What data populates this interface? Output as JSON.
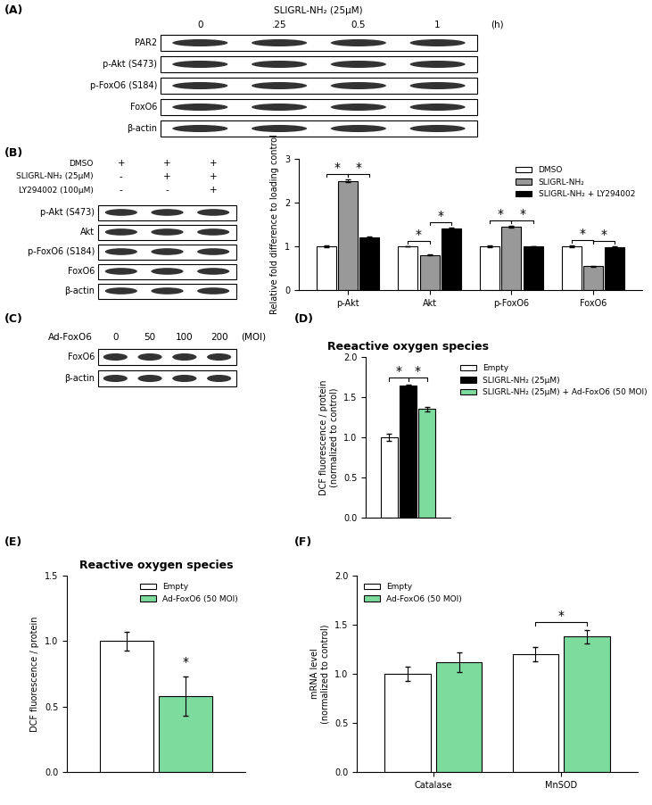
{
  "blots": [
    {
      "panel_label": "(A)",
      "header": "SLIGRL-NH₂ (25μM)",
      "columns": [
        "0",
        ".25",
        "0.5",
        "1"
      ],
      "unit": "(h)",
      "rows": [
        "PAR2",
        "p-Akt (S473)",
        "p-FoxO6 (S184)",
        "FoxO6",
        "β-actin"
      ]
    },
    {
      "panel_label": "(B)",
      "conditions": [
        {
          "label": "DMSO",
          "signs": [
            "+",
            "+",
            "+"
          ]
        },
        {
          "label": "SLIGRL-NH₂ (25μM)",
          "signs": [
            "-",
            "+",
            "+"
          ]
        },
        {
          "label": "LY294002 (100μM)",
          "signs": [
            "-",
            "-",
            "+"
          ]
        }
      ],
      "rows": [
        "p-Akt (S473)",
        "Akt",
        "p-FoxO6 (S184)",
        "FoxO6",
        "β-actin"
      ]
    },
    {
      "panel_label": "(C)",
      "header": "Ad-FoxO6",
      "columns": [
        "0",
        "50",
        "100",
        "200"
      ],
      "unit": "(MOI)",
      "rows": [
        "FoxO6",
        "β-actin"
      ]
    }
  ],
  "chart_data": [
    {
      "type": "bar",
      "y_label": "Relative fold difference to loading control",
      "categories": [
        "p-Akt",
        "Akt",
        "p-FoxO6",
        "FoxO6"
      ],
      "series": [
        {
          "name": "DMSO",
          "color": "#ffffff",
          "values": [
            1.0,
            1.0,
            1.0,
            1.0
          ],
          "errors": [
            0.03,
            0.01,
            0.02,
            0.02
          ]
        },
        {
          "name": "SLIGRL-NH₂",
          "color": "#999999",
          "values": [
            2.5,
            0.8,
            1.45,
            0.55
          ],
          "errors": [
            0.03,
            0.01,
            0.02,
            0.01
          ]
        },
        {
          "name": "SLIGRL-NH₂ + LY294002",
          "color": "#000000",
          "values": [
            1.2,
            1.4,
            1.0,
            0.97
          ],
          "errors": [
            0.03,
            0.03,
            0.01,
            0.03
          ]
        }
      ],
      "ylim": [
        0,
        3
      ],
      "yticks": [
        0,
        1,
        2,
        3
      ],
      "legend": "upper right",
      "significance": [
        {
          "category": "p-Akt",
          "series": [
            "DMSO",
            "SLIGRL-NH₂"
          ],
          "label": "*"
        },
        {
          "category": "p-Akt",
          "series": [
            "SLIGRL-NH₂",
            "SLIGRL-NH₂ + LY294002"
          ],
          "label": "*"
        },
        {
          "category": "Akt",
          "series": [
            "DMSO",
            "SLIGRL-NH₂"
          ],
          "label": "*"
        },
        {
          "category": "Akt",
          "series": [
            "SLIGRL-NH₂",
            "SLIGRL-NH₂ + LY294002"
          ],
          "label": "*"
        },
        {
          "category": "p-FoxO6",
          "series": [
            "DMSO",
            "SLIGRL-NH₂"
          ],
          "label": "*"
        },
        {
          "category": "p-FoxO6",
          "series": [
            "SLIGRL-NH₂",
            "SLIGRL-NH₂ + LY294002"
          ],
          "label": "*"
        },
        {
          "category": "FoxO6",
          "series": [
            "DMSO",
            "SLIGRL-NH₂"
          ],
          "label": "*"
        },
        {
          "category": "FoxO6",
          "series": [
            "SLIGRL-NH₂",
            "SLIGRL-NH₂ + LY294002"
          ],
          "label": "*"
        }
      ]
    },
    {
      "type": "bar",
      "panel_label": "(D)",
      "title": "Reeactive oxygen species",
      "y_label": "DCF fluorescence / protein\n(normalized to control)",
      "categories": [
        null
      ],
      "series": [
        {
          "name": "Empty",
          "color": "#ffffff",
          "values": [
            1.0
          ],
          "errors": [
            0.04
          ]
        },
        {
          "name": "SLIGRL-NH₂ (25μM)",
          "color": "#000000",
          "values": [
            1.65
          ],
          "errors": [
            0.01
          ]
        },
        {
          "name": "SLIGRL-NH₂ (25μM) + Ad-FoxO6 (50 MOI)",
          "color": "#7ddb9e",
          "values": [
            1.35
          ],
          "errors": [
            0.03
          ]
        }
      ],
      "ylim": [
        0,
        2.0
      ],
      "yticks": [
        {
          "value": 0,
          "label": "0.0"
        },
        {
          "value": 0.5,
          "label": "0.5"
        },
        {
          "value": 1.0,
          "label": "1.0"
        },
        {
          "value": 1.5,
          "label": "1.5"
        },
        {
          "value": 2.0,
          "label": "2.0"
        }
      ],
      "tick_labels": "y",
      "legend": "upper left",
      "significance": [
        {
          "category": null,
          "series": [
            "Empty",
            "SLIGRL-NH₂ (25μM)"
          ],
          "label": "*"
        },
        {
          "category": null,
          "series": [
            "SLIGRL-NH₂ (25μM)",
            "SLIGRL-NH₂ (25μM) + Ad-FoxO6 (50 MOI)"
          ],
          "label": "*"
        }
      ]
    },
    {
      "type": "bar",
      "panel_label": "(E)",
      "title": "Reactive oxygen species",
      "y_label": "DCF fluorescence / protein",
      "categories": [
        null
      ],
      "series": [
        {
          "name": "Empty",
          "color": "#ffffff",
          "values": [
            1.0
          ],
          "errors": [
            0.07
          ]
        },
        {
          "name": "Ad-FoxO6 (50 MOI)",
          "color": "#7ddb9e",
          "values": [
            0.58
          ],
          "errors": [
            0.15
          ]
        }
      ],
      "ylim": [
        0,
        1.5
      ],
      "yticks": [
        {
          "value": 0,
          "label": "0.0"
        },
        {
          "value": 0.5,
          "label": "0.5"
        },
        {
          "value": 1.0,
          "label": "1.0"
        },
        {
          "value": 1.5,
          "label": "1.5"
        }
      ],
      "tick_labels": "y",
      "legend": "upper right",
      "significance": [
        {
          "category": null,
          "series": [
            "Ad-FoxO6 (50 MOI)"
          ],
          "label": "*"
        }
      ]
    },
    {
      "type": "bar",
      "panel_label": "(F)",
      "y_label": "mRNA level\n(normalized to control)",
      "categories": [
        "Catalase",
        "MnSOD"
      ],
      "series": [
        {
          "name": "Empty",
          "color": "#ffffff",
          "values": [
            1.0,
            1.2
          ],
          "errors": [
            0.07,
            0.07
          ]
        },
        {
          "name": "Ad-FoxO6 (50 MOI)",
          "color": "#7ddb9e",
          "values": [
            1.12,
            1.38
          ],
          "errors": [
            0.1,
            0.07
          ]
        }
      ],
      "ylim": [
        0,
        2.0
      ],
      "yticks": [
        {
          "value": 0,
          "label": "0.0"
        },
        {
          "value": 0.5,
          "label": "0.5"
        },
        {
          "value": 1.0,
          "label": "1.0"
        },
        {
          "value": 1.5,
          "label": "1.5"
        },
        {
          "value": 2.0,
          "label": "2.0"
        }
      ],
      "legend": "upper left",
      "significance": [
        {
          "category": "MnSOD",
          "series": [
            "Empty",
            "Ad-FoxO6 (50 MOI)"
          ],
          "label": "*"
        }
      ]
    }
  ]
}
